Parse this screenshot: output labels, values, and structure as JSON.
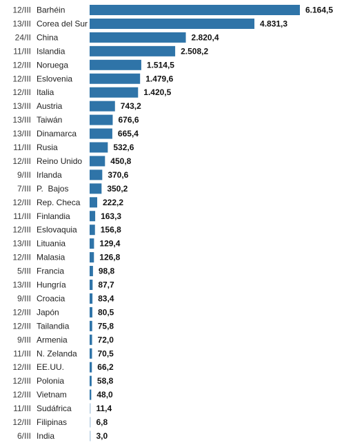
{
  "colors": {
    "bar": "#2f74a8",
    "date": "#3a3a3a",
    "label": "#1f1f1f",
    "value": "#111111"
  },
  "chart_data": {
    "type": "bar",
    "orientation": "horizontal",
    "categories": [
      "Barhéin",
      "Corea del Sur",
      "China",
      "Islandia",
      "Noruega",
      "Eslovenia",
      "Italia",
      "Austria",
      "Taiwán",
      "Dinamarca",
      "Rusia",
      "Reino Unido",
      "Irlanda",
      "P.  Bajos",
      "Rep. Checa",
      "Finlandia",
      "Eslovaquia",
      "Lituania",
      "Malasia",
      "Francia",
      "Hungría",
      "Croacia",
      "Japón",
      "Tailandia",
      "Armenia",
      "N. Zelanda",
      "EE.UU.",
      "Polonia",
      "Vietnam",
      "Sudáfrica",
      "Filipinas",
      "India"
    ],
    "dates": [
      "12/III",
      "13/III",
      "24/II",
      "11/III",
      "12/III",
      "12/III",
      "12/III",
      "13/III",
      "13/III",
      "13/III",
      "11/III",
      "12/III",
      "9/III",
      "7/III",
      "12/III",
      "11/III",
      "12/III",
      "13/III",
      "12/III",
      "5/III",
      "13/III",
      "9/III",
      "12/III",
      "12/III",
      "9/III",
      "11/III",
      "12/III",
      "12/III",
      "12/III",
      "11/III",
      "12/III",
      "6/III"
    ],
    "values": [
      6164.5,
      4831.3,
      2820.4,
      2508.2,
      1514.5,
      1479.6,
      1420.5,
      743.2,
      676.6,
      665.4,
      532.6,
      450.8,
      370.6,
      350.2,
      222.2,
      163.3,
      156.8,
      129.4,
      126.8,
      98.8,
      87.7,
      83.4,
      80.5,
      75.8,
      72.0,
      70.5,
      66.2,
      58.8,
      48.0,
      11.4,
      6.8,
      3.0
    ],
    "value_labels": [
      "6.164,5",
      "4.831,3",
      "2.820,4",
      "2.508,2",
      "1.514,5",
      "1.479,6",
      "1.420,5",
      "743,2",
      "676,6",
      "665,4",
      "532,6",
      "450,8",
      "370,6",
      "350,2",
      "222,2",
      "163,3",
      "156,8",
      "129,4",
      "126,8",
      "98,8",
      "87,7",
      "83,4",
      "80,5",
      "75,8",
      "72,0",
      "70,5",
      "66,2",
      "58,8",
      "48,0",
      "11,4",
      "6,8",
      "3,0"
    ],
    "title": "",
    "xlabel": "",
    "ylabel": "",
    "grid": false,
    "legend": "none"
  }
}
